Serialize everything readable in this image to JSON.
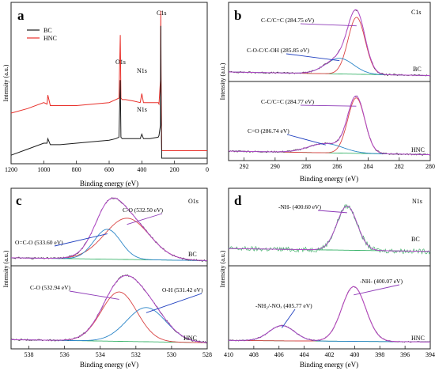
{
  "figure": {
    "ylabel": "Intensity (a.u.)",
    "xlabel": "Binding energy (eV)"
  },
  "colors": {
    "bc": "#1a1a1a",
    "hnc": "#e8302a",
    "envelope": "#b44bc9",
    "fit1": "#d94444",
    "fit2": "#2c86c8",
    "background": "#39b36a",
    "noisy": "#2a2a2a",
    "green_fit": "#2da55a",
    "arrow_blue": "#2040c0",
    "arrow_purple": "#8e3bb8"
  },
  "chart_data": [
    {
      "type": "line",
      "panel_label": "a",
      "xlabel": "Binding energy (eV)",
      "ylabel": "Intensity (a.u.)",
      "xlim": [
        1200,
        0
      ],
      "xreversed": true,
      "xticks": [
        "1200",
        "1000",
        "800",
        "600",
        "400",
        "200",
        "0"
      ],
      "legend": {
        "position": "top-left",
        "entries": [
          "BC",
          "HNC"
        ]
      },
      "series": [
        {
          "name": "HNC",
          "color": "#e8302a",
          "x": [
            1200,
            1100,
            1000,
            980,
            975,
            960,
            900,
            800,
            700,
            600,
            560,
            540,
            532,
            528,
            520,
            500,
            450,
            410,
            400,
            390,
            350,
            300,
            295,
            286,
            284,
            282,
            278,
            200,
            100,
            0
          ],
          "y": [
            0.3,
            0.33,
            0.37,
            0.36,
            0.42,
            0.35,
            0.35,
            0.35,
            0.36,
            0.37,
            0.39,
            0.4,
            0.82,
            0.4,
            0.39,
            0.39,
            0.38,
            0.37,
            0.43,
            0.37,
            0.37,
            0.37,
            0.36,
            0.52,
            0.98,
            0.55,
            0.05,
            0.05,
            0.05,
            0.05
          ]
        },
        {
          "name": "BC",
          "color": "#1a1a1a",
          "x": [
            1200,
            1100,
            1000,
            980,
            975,
            960,
            900,
            800,
            700,
            600,
            560,
            540,
            532,
            528,
            520,
            500,
            450,
            410,
            400,
            390,
            350,
            300,
            295,
            286,
            284,
            282,
            278,
            200,
            100,
            0
          ],
          "y": [
            0.02,
            0.06,
            0.1,
            0.1,
            0.13,
            0.09,
            0.09,
            0.1,
            0.11,
            0.12,
            0.13,
            0.14,
            0.52,
            0.14,
            0.13,
            0.13,
            0.13,
            0.13,
            0.16,
            0.13,
            0.13,
            0.14,
            0.15,
            0.22,
            0.88,
            0.3,
            0.0,
            0.0,
            0.0,
            0.0
          ]
        }
      ],
      "annotations": [
        "C1s",
        "O1s",
        "N1s",
        "N1s"
      ]
    },
    {
      "type": "line",
      "panel_label": "b",
      "element": "C1s",
      "xlabel": "Binding energy (eV)",
      "ylabel": "Intensity (a.u.)",
      "xlim": [
        293,
        280
      ],
      "xreversed": true,
      "xticks": [
        "292",
        "290",
        "288",
        "286",
        "284",
        "282",
        "280"
      ],
      "subpanels": [
        {
          "sample": "BC",
          "peaks": [
            {
              "label": "C-C/C=C (284.75 eV)",
              "center": 284.75,
              "height": 0.8,
              "width": 0.55
            },
            {
              "label": "C-O-C/C-OH (285.85 eV)",
              "center": 285.85,
              "height": 0.22,
              "width": 0.9
            }
          ],
          "background": 0.05,
          "bg_rise": 0.05
        },
        {
          "sample": "HNC",
          "peaks": [
            {
              "label": "C-C/C=C (284.77 eV)",
              "center": 284.77,
              "height": 0.78,
              "width": 0.55
            },
            {
              "label": "C=O (286.74 eV)",
              "center": 286.74,
              "height": 0.13,
              "width": 1.1
            }
          ],
          "background": 0.05,
          "bg_rise": 0.05
        }
      ]
    },
    {
      "type": "line",
      "panel_label": "c",
      "element": "O1s",
      "xlabel": "Binding energy (eV)",
      "ylabel": "Intensity (a.u.)",
      "xlim": [
        539,
        528
      ],
      "xreversed": true,
      "xticks": [
        "538",
        "536",
        "534",
        "532",
        "530",
        "528"
      ],
      "subpanels": [
        {
          "sample": "BC",
          "peaks": [
            {
              "label": "C-O (532.50 eV)",
              "center": 532.5,
              "height": 0.58,
              "width": 1.25
            },
            {
              "label": "O=C-O (533.60 eV)",
              "center": 533.6,
              "height": 0.42,
              "width": 0.75
            }
          ],
          "background": 0.05,
          "bg_rise": 0.04
        },
        {
          "sample": "HNC",
          "peaks": [
            {
              "label": "C-O (532.94 eV)",
              "center": 532.94,
              "height": 0.65,
              "width": 1.0
            },
            {
              "label": "O-H (531.42 eV)",
              "center": 531.42,
              "height": 0.45,
              "width": 1.1
            }
          ],
          "background": 0.05,
          "bg_rise": 0.04
        }
      ]
    },
    {
      "type": "line",
      "panel_label": "d",
      "element": "N1s",
      "xlabel": "Binding energy (eV)",
      "ylabel": "Intensity (a.u.)",
      "xlim": [
        410,
        394
      ],
      "xreversed": true,
      "xticks": [
        "410",
        "408",
        "406",
        "404",
        "402",
        "400",
        "398",
        "396",
        "394"
      ],
      "subpanels": [
        {
          "sample": "BC",
          "peaks": [
            {
              "label": "-NH- (400.60 eV)",
              "center": 400.6,
              "height": 0.62,
              "width": 0.8
            }
          ],
          "background": 0.18,
          "bg_rise": 0.04,
          "noise": 0.035
        },
        {
          "sample": "HNC",
          "peaks": [
            {
              "label": "-NH- (400.07 eV)",
              "center": 400.07,
              "height": 0.72,
              "width": 0.95
            },
            {
              "label": "-NH₂/-NOₓ (405.77 eV)",
              "center": 405.77,
              "height": 0.2,
              "width": 1.0
            }
          ],
          "background": 0.06,
          "bg_rise": 0.02,
          "noise": 0.008
        }
      ]
    }
  ]
}
